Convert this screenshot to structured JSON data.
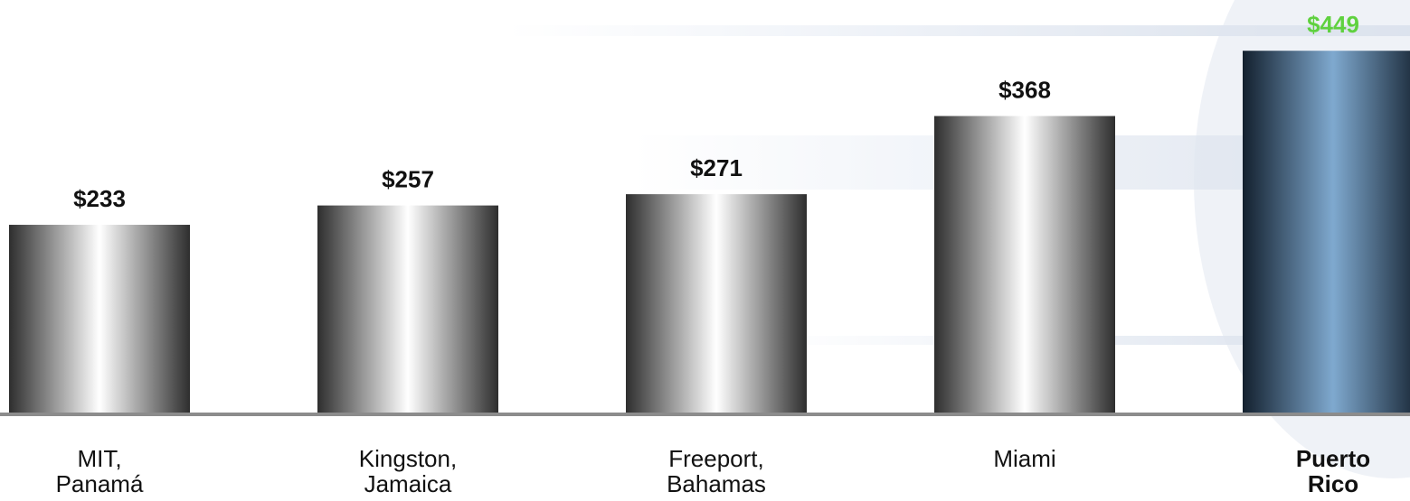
{
  "chart_data": {
    "type": "bar",
    "categories": [
      "MIT,\nPanamá",
      "Kingston,\nJamaica",
      "Freeport,\nBahamas",
      "Miami",
      "Puerto\nRico"
    ],
    "values": [
      233,
      257,
      271,
      368,
      449
    ],
    "value_labels": [
      "$233",
      "$257",
      "$271",
      "$368",
      "$449"
    ],
    "colors": [
      "#2e2e2e",
      "#2e2e2e",
      "#2e2e2e",
      "#2e2e2e",
      "#13202e"
    ],
    "highlight": 4,
    "highlight_label_color": "#5fd13f",
    "ylim": [
      0,
      512
    ]
  }
}
